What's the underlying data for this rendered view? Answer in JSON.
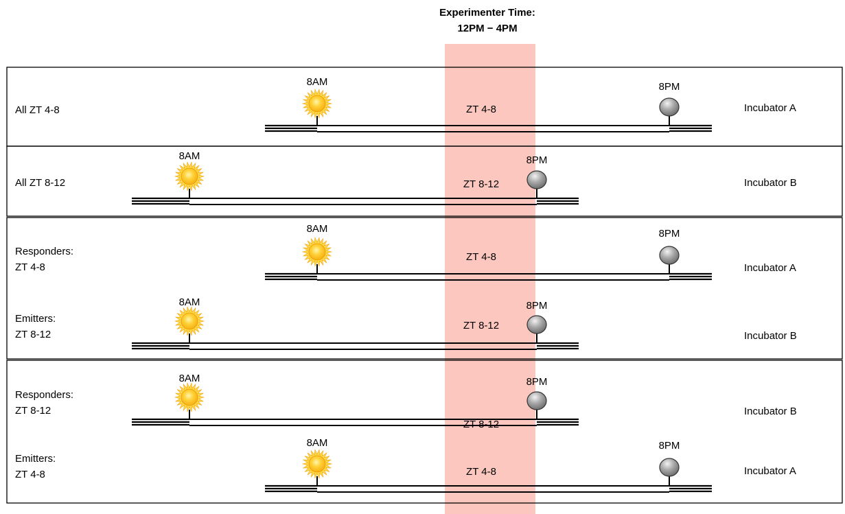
{
  "header": {
    "title_line1": "Experimenter Time:",
    "title_line2": "12PM − 4PM"
  },
  "colors": {
    "window": "#fcc4bc",
    "track": "#000000",
    "sun": "#f6b012",
    "moon": "#6f6f6f"
  },
  "panels": [
    {
      "rows": [
        {
          "label_lines": [
            "All ZT 4-8"
          ],
          "window_label": "ZT 4-8",
          "sunrise": "8AM",
          "sunset": "8PM",
          "incubator": "Incubator A"
        }
      ]
    },
    {
      "rows": [
        {
          "label_lines": [
            "All ZT 8-12"
          ],
          "window_label": "ZT 8-12",
          "sunrise": "8AM",
          "sunset": "8PM",
          "incubator": "Incubator B"
        }
      ]
    },
    {
      "rows": [
        {
          "label_lines": [
            "Responders:",
            "ZT 4-8"
          ],
          "window_label": "ZT 4-8",
          "sunrise": "8AM",
          "sunset": "8PM",
          "incubator": "Incubator A"
        },
        {
          "label_lines": [
            "Emitters:",
            "ZT 8-12"
          ],
          "window_label": "ZT 8-12",
          "sunrise": "8AM",
          "sunset": "8PM",
          "incubator": "Incubator B"
        }
      ]
    },
    {
      "rows": [
        {
          "label_lines": [
            "Responders:",
            "ZT 8-12"
          ],
          "window_label": "ZT 8-12",
          "sunrise": "8AM",
          "sunset": "8PM",
          "incubator": "Incubator B"
        },
        {
          "label_lines": [
            "Emitters:",
            "ZT 4-8"
          ],
          "window_label": "ZT 4-8",
          "sunrise": "8AM",
          "sunset": "8PM",
          "incubator": "Incubator A"
        }
      ]
    }
  ]
}
